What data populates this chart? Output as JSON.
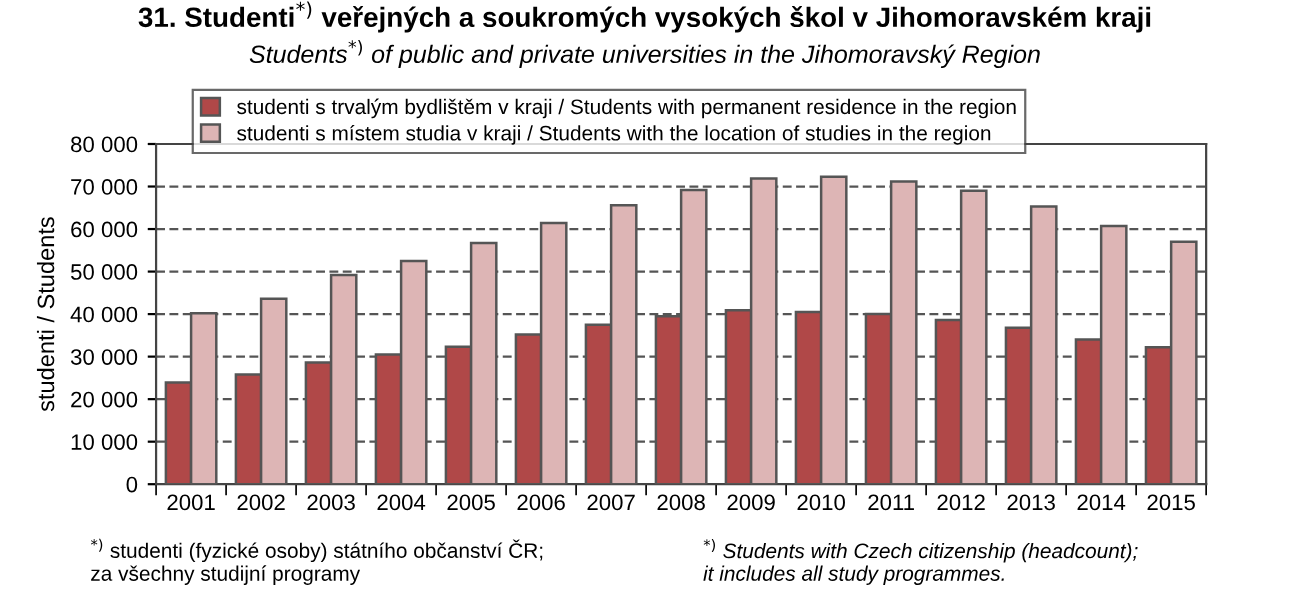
{
  "chart_data": {
    "type": "bar",
    "title": "31. Studenti$^{*)}$ veřejných a soukromých vysokých škol v Jihomoravském kraji",
    "subtitle": "Students$^{*)}$ of public and private universities in the Jihomoravský Region",
    "ylabel": "studenti / Students",
    "categories": [
      "2001",
      "2002",
      "2003",
      "2004",
      "2005",
      "2006",
      "2007",
      "2008",
      "2009",
      "2010",
      "2011",
      "2012",
      "2013",
      "2014",
      "2015"
    ],
    "series": [
      {
        "name": "studenti s trvalým bydlištěm v kraji / Students with permanent residence in the region",
        "color": "#b04848",
        "values": [
          23900,
          25800,
          28600,
          30500,
          32300,
          35200,
          37500,
          39500,
          40900,
          40500,
          40000,
          38600,
          36800,
          34000,
          32200
        ]
      },
      {
        "name": "studenti s místem studia v kraji / Students with the location of studies in the region",
        "color": "#ddb5b5",
        "values": [
          40200,
          43600,
          49200,
          52500,
          56700,
          61400,
          65600,
          69200,
          71900,
          72300,
          71200,
          69000,
          65300,
          60700,
          57000
        ]
      }
    ],
    "ylim": [
      0,
      80000
    ],
    "yticks": [
      0,
      {
        "value": 10000,
        "label": "10 000"
      },
      {
        "value": 20000,
        "label": "20 000"
      },
      {
        "value": 30000,
        "label": "30 000"
      },
      {
        "value": 40000,
        "label": "40 000"
      },
      {
        "value": 50000,
        "label": "50 000"
      },
      {
        "value": 60000,
        "label": "60 000"
      },
      {
        "value": 70000,
        "label": "70 000"
      },
      {
        "value": 80000,
        "label": "80 000"
      }
    ],
    "grid": "y",
    "legend": "top left",
    "annotations": [
      "$^{*)}$ studenti (fyzické osoby) státního občanství ČR;\nza všechny studijní programy",
      "$^{*)}$ Students with Czech citizenship (headcount);\nit includes all study programmes."
    ]
  }
}
